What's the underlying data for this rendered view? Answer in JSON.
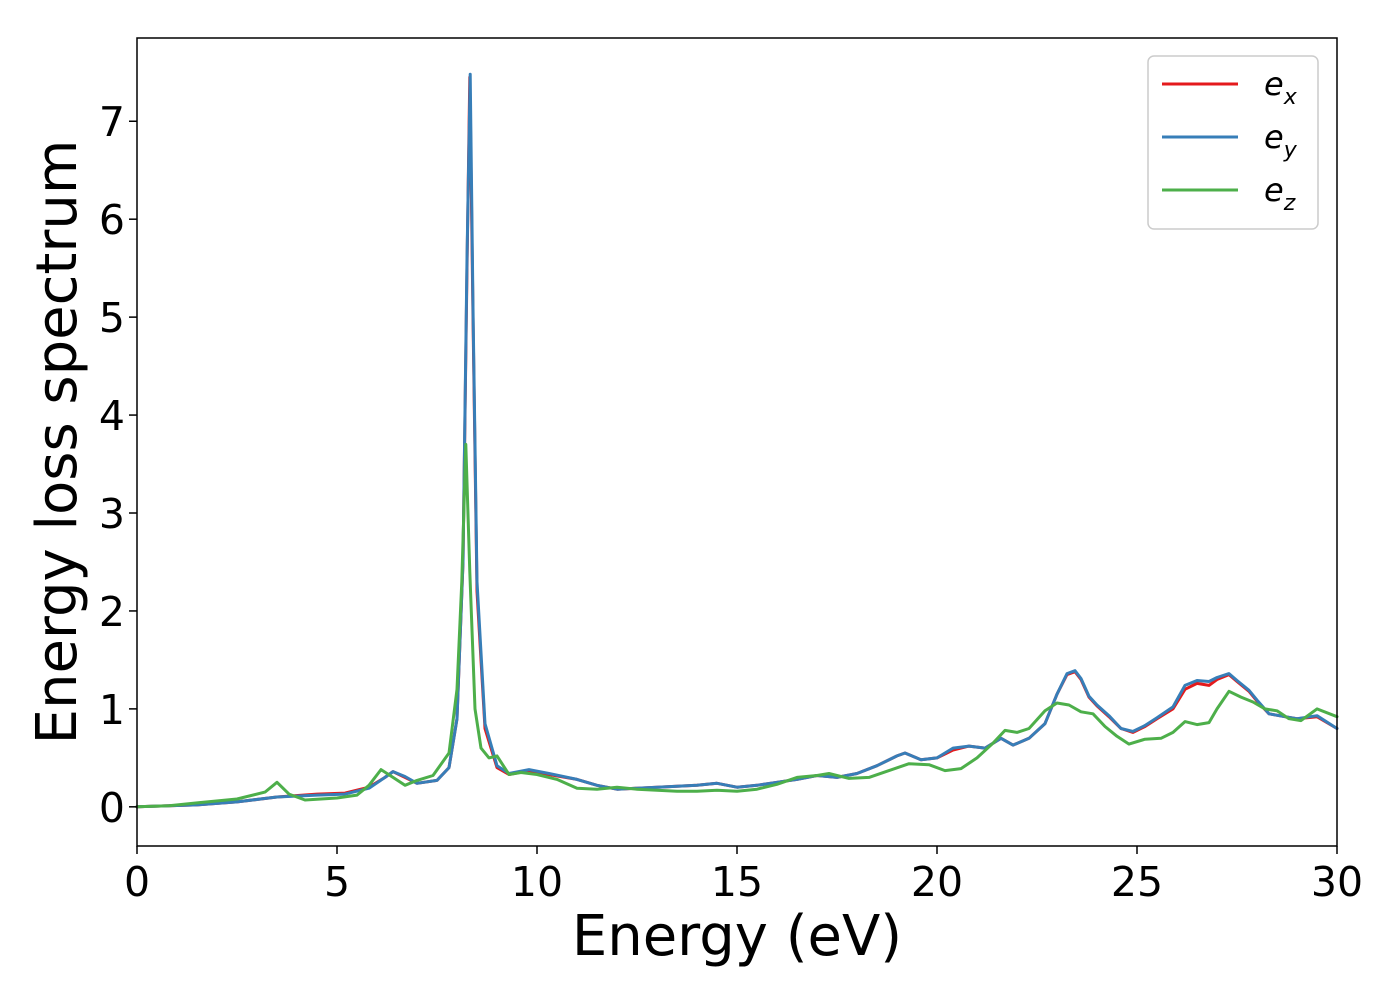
{
  "chart_data": {
    "type": "line",
    "title": "",
    "xlabel": "Energy (eV)",
    "ylabel": "Energy loss spectrum",
    "xlim": [
      0,
      30
    ],
    "ylim": [
      -0.4,
      7.85
    ],
    "xticks": [
      0,
      5,
      10,
      15,
      20,
      25,
      30
    ],
    "xtick_labels": [
      "0",
      "5",
      "10",
      "15",
      "20",
      "25",
      "30"
    ],
    "yticks": [
      0,
      1,
      2,
      3,
      4,
      5,
      6,
      7
    ],
    "ytick_labels": [
      "0",
      "1",
      "2",
      "3",
      "4",
      "5",
      "6",
      "7"
    ],
    "grid": false,
    "legend_position": "top-right",
    "series": [
      {
        "name": "e_x",
        "color": "#e41a1c",
        "x": [
          0,
          0.8,
          1.5,
          2.5,
          3.5,
          4.5,
          5.2,
          5.8,
          6.2,
          6.4,
          6.7,
          7.0,
          7.5,
          7.8,
          8.0,
          8.15,
          8.25,
          8.32,
          8.4,
          8.5,
          8.7,
          9.0,
          9.3,
          9.8,
          10.3,
          11.0,
          11.5,
          12.0,
          12.5,
          13.0,
          13.5,
          14.0,
          14.5,
          15.0,
          15.5,
          16.0,
          16.5,
          17.0,
          17.5,
          18.0,
          18.5,
          19.0,
          19.2,
          19.6,
          20.0,
          20.4,
          20.8,
          21.2,
          21.6,
          21.9,
          22.3,
          22.7,
          23.0,
          23.25,
          23.45,
          23.6,
          23.8,
          24.0,
          24.3,
          24.6,
          24.9,
          25.2,
          25.5,
          25.9,
          26.2,
          26.5,
          26.8,
          27.0,
          27.3,
          27.5,
          27.8,
          28.0,
          28.3,
          28.7,
          29.0,
          29.5,
          30.0
        ],
        "y": [
          0.0,
          0.01,
          0.02,
          0.05,
          0.1,
          0.13,
          0.14,
          0.2,
          0.3,
          0.36,
          0.3,
          0.24,
          0.27,
          0.4,
          0.9,
          2.5,
          5.5,
          7.45,
          5.0,
          2.2,
          0.8,
          0.4,
          0.33,
          0.37,
          0.33,
          0.28,
          0.22,
          0.18,
          0.19,
          0.2,
          0.21,
          0.22,
          0.24,
          0.2,
          0.22,
          0.25,
          0.28,
          0.32,
          0.3,
          0.34,
          0.42,
          0.52,
          0.55,
          0.48,
          0.5,
          0.58,
          0.62,
          0.6,
          0.7,
          0.63,
          0.7,
          0.85,
          1.15,
          1.35,
          1.38,
          1.3,
          1.12,
          1.03,
          0.92,
          0.8,
          0.76,
          0.82,
          0.9,
          1.0,
          1.2,
          1.26,
          1.24,
          1.3,
          1.35,
          1.28,
          1.18,
          1.08,
          0.95,
          0.92,
          0.9,
          0.92,
          0.8
        ]
      },
      {
        "name": "e_y",
        "color": "#377eb8",
        "x": [
          0,
          0.8,
          1.5,
          2.5,
          3.5,
          4.5,
          5.2,
          5.8,
          6.2,
          6.4,
          6.7,
          7.0,
          7.5,
          7.8,
          8.0,
          8.15,
          8.25,
          8.33,
          8.4,
          8.5,
          8.7,
          9.0,
          9.3,
          9.8,
          10.3,
          11.0,
          11.5,
          12.0,
          12.5,
          13.0,
          13.5,
          14.0,
          14.5,
          15.0,
          15.5,
          16.0,
          16.5,
          17.0,
          17.5,
          18.0,
          18.5,
          19.0,
          19.2,
          19.6,
          20.0,
          20.4,
          20.8,
          21.2,
          21.6,
          21.9,
          22.3,
          22.7,
          23.0,
          23.25,
          23.45,
          23.6,
          23.8,
          24.0,
          24.3,
          24.6,
          24.9,
          25.2,
          25.5,
          25.9,
          26.2,
          26.5,
          26.8,
          27.0,
          27.3,
          27.5,
          27.8,
          28.0,
          28.3,
          28.7,
          29.0,
          29.5,
          30.0
        ],
        "y": [
          0.0,
          0.01,
          0.02,
          0.05,
          0.1,
          0.12,
          0.13,
          0.19,
          0.3,
          0.36,
          0.31,
          0.24,
          0.27,
          0.4,
          0.9,
          2.5,
          5.6,
          7.48,
          5.1,
          2.3,
          0.85,
          0.42,
          0.34,
          0.38,
          0.34,
          0.28,
          0.22,
          0.18,
          0.19,
          0.2,
          0.21,
          0.22,
          0.24,
          0.2,
          0.22,
          0.25,
          0.28,
          0.32,
          0.3,
          0.34,
          0.42,
          0.52,
          0.55,
          0.48,
          0.5,
          0.6,
          0.62,
          0.6,
          0.7,
          0.63,
          0.7,
          0.85,
          1.15,
          1.36,
          1.39,
          1.31,
          1.13,
          1.04,
          0.93,
          0.8,
          0.77,
          0.83,
          0.91,
          1.02,
          1.24,
          1.29,
          1.28,
          1.32,
          1.36,
          1.29,
          1.19,
          1.09,
          0.95,
          0.92,
          0.9,
          0.93,
          0.8
        ]
      },
      {
        "name": "e_z",
        "color": "#4daf4a",
        "x": [
          0,
          0.8,
          1.5,
          2.5,
          3.2,
          3.5,
          3.8,
          4.2,
          5.0,
          5.5,
          5.8,
          6.1,
          6.4,
          6.7,
          7.0,
          7.4,
          7.8,
          8.0,
          8.12,
          8.22,
          8.32,
          8.45,
          8.6,
          8.8,
          9.0,
          9.3,
          9.6,
          10.0,
          10.5,
          11.0,
          11.5,
          12.0,
          12.5,
          13.0,
          13.5,
          14.0,
          14.5,
          15.0,
          15.5,
          16.0,
          16.5,
          17.0,
          17.3,
          17.8,
          18.3,
          18.8,
          19.3,
          19.8,
          20.2,
          20.6,
          21.0,
          21.4,
          21.7,
          22.0,
          22.3,
          22.7,
          23.0,
          23.3,
          23.6,
          23.9,
          24.2,
          24.5,
          24.8,
          25.2,
          25.6,
          25.9,
          26.2,
          26.5,
          26.8,
          27.0,
          27.3,
          27.6,
          27.9,
          28.2,
          28.5,
          28.8,
          29.1,
          29.5,
          30.0
        ],
        "y": [
          0.0,
          0.01,
          0.04,
          0.08,
          0.15,
          0.25,
          0.13,
          0.07,
          0.09,
          0.12,
          0.22,
          0.38,
          0.3,
          0.22,
          0.27,
          0.32,
          0.55,
          1.2,
          2.3,
          3.7,
          2.4,
          1.0,
          0.6,
          0.5,
          0.52,
          0.33,
          0.35,
          0.33,
          0.28,
          0.19,
          0.18,
          0.2,
          0.18,
          0.17,
          0.16,
          0.16,
          0.17,
          0.16,
          0.18,
          0.23,
          0.3,
          0.32,
          0.34,
          0.29,
          0.3,
          0.37,
          0.44,
          0.43,
          0.37,
          0.39,
          0.5,
          0.65,
          0.78,
          0.76,
          0.8,
          0.98,
          1.06,
          1.04,
          0.97,
          0.95,
          0.82,
          0.72,
          0.64,
          0.69,
          0.7,
          0.76,
          0.87,
          0.84,
          0.86,
          1.0,
          1.18,
          1.12,
          1.07,
          1.0,
          0.98,
          0.9,
          0.88,
          1.0,
          0.92
        ]
      }
    ]
  },
  "legend": [
    {
      "base": "e",
      "sub": "x",
      "color": "#e41a1c"
    },
    {
      "base": "e",
      "sub": "y",
      "color": "#377eb8"
    },
    {
      "base": "e",
      "sub": "z",
      "color": "#4daf4a"
    }
  ]
}
